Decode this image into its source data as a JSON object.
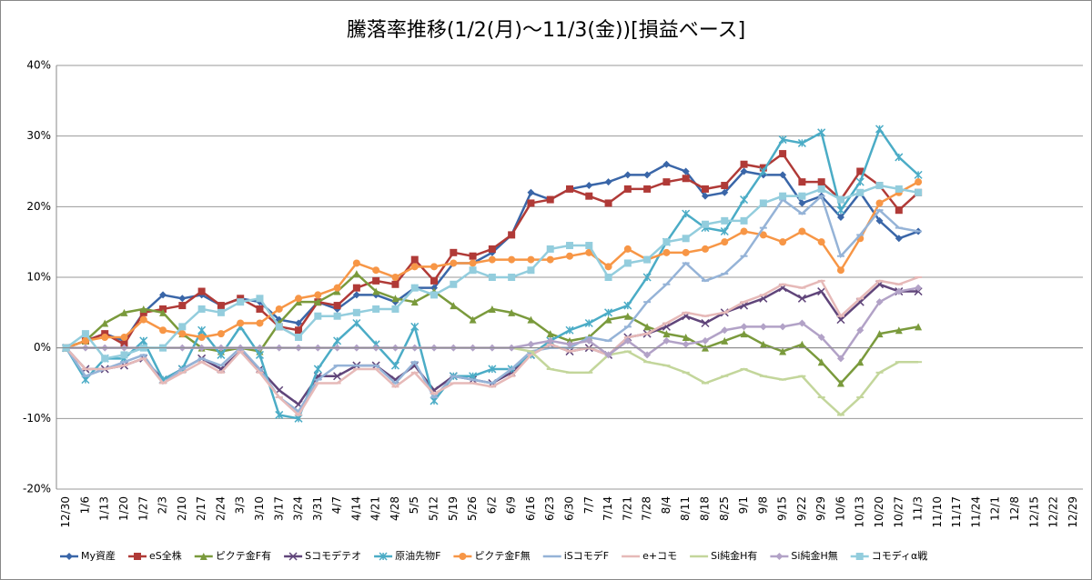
{
  "chart_data": {
    "type": "line",
    "title": "騰落率推移(1/2(月)～11/3(金))[損益ベース]",
    "categories": [
      "12/30",
      "1/6",
      "1/13",
      "1/20",
      "1/27",
      "2/3",
      "2/10",
      "2/17",
      "2/24",
      "3/3",
      "3/10",
      "3/17",
      "3/24",
      "3/31",
      "4/7",
      "4/14",
      "4/21",
      "4/28",
      "5/5",
      "5/12",
      "5/19",
      "5/26",
      "6/2",
      "6/9",
      "6/16",
      "6/23",
      "6/30",
      "7/7",
      "7/14",
      "7/21",
      "7/28",
      "8/4",
      "8/11",
      "8/18",
      "8/25",
      "9/1",
      "9/8",
      "9/15",
      "9/22",
      "9/29",
      "10/6",
      "10/13",
      "10/20",
      "10/27",
      "11/3",
      "11/10",
      "11/17",
      "11/24",
      "12/1",
      "12/8",
      "12/15",
      "12/22",
      "12/29"
    ],
    "ylim": [
      -20,
      40
    ],
    "yticks": [
      {
        "value": -20,
        "label": "-20%"
      },
      {
        "value": -10,
        "label": "-10%"
      },
      {
        "value": 0,
        "label": "0%"
      },
      {
        "value": 10,
        "label": "10%"
      },
      {
        "value": 20,
        "label": "20%"
      },
      {
        "value": 30,
        "label": "30%"
      },
      {
        "value": 40,
        "label": "40%"
      }
    ],
    "grid": true,
    "legend": "bottom",
    "series": [
      {
        "name": "My資産",
        "color": "#3a66a8",
        "marker": "diamond",
        "values": [
          0,
          1,
          2,
          1,
          5,
          7.5,
          7,
          7.5,
          6,
          7,
          6.5,
          4,
          3.5,
          6.5,
          5.5,
          7.5,
          7.5,
          6.5,
          8.5,
          8.5,
          12,
          12,
          13.5,
          16,
          22,
          21,
          22.5,
          23,
          23.5,
          24.5,
          24.5,
          26,
          25,
          21.5,
          22,
          25,
          24.5,
          24.5,
          20.5,
          21.5,
          18.5,
          22,
          18,
          15.5,
          16.5,
          null,
          null,
          null,
          null,
          null,
          null,
          null,
          null
        ]
      },
      {
        "name": "eS全株",
        "color": "#b03a37",
        "marker": "square",
        "values": [
          0,
          1,
          2,
          0.5,
          5,
          5.5,
          6,
          8,
          6,
          7,
          5.5,
          3,
          2.5,
          6.5,
          6,
          8.5,
          9.5,
          9,
          12.5,
          9.5,
          13.5,
          13,
          14,
          16,
          20.5,
          21,
          22.5,
          21.5,
          20.5,
          22.5,
          22.5,
          23.5,
          24,
          22.5,
          23,
          26,
          25.5,
          27.5,
          23.5,
          23.5,
          21,
          25,
          23,
          19.5,
          22,
          null,
          null,
          null,
          null,
          null,
          null,
          null,
          null
        ]
      },
      {
        "name": "ピクテ金F有",
        "color": "#7a9a3c",
        "marker": "triangle",
        "values": [
          0,
          1,
          3.5,
          5,
          5.5,
          5,
          2,
          0,
          -0.5,
          0,
          -0.5,
          3.5,
          6.5,
          6.5,
          8,
          10.5,
          8,
          7,
          6.5,
          8,
          6,
          4,
          5.5,
          5,
          4,
          2,
          1,
          1.5,
          4,
          4.5,
          3,
          2,
          1.5,
          0,
          1,
          2,
          0.5,
          -0.5,
          0.5,
          -2,
          -5,
          -2,
          2,
          2.5,
          3,
          null,
          null,
          null,
          null,
          null,
          null,
          null,
          null
        ]
      },
      {
        "name": "Sコモデテオ",
        "color": "#60457a",
        "marker": "x",
        "values": [
          0,
          -3,
          -3,
          -2.5,
          -1.5,
          -4.5,
          -3,
          -1.5,
          -3,
          -0.5,
          -3,
          -6,
          -8,
          -4,
          -4,
          -2.5,
          -2.5,
          -4.5,
          -2.5,
          -6,
          -4,
          -4.5,
          -5,
          -3.5,
          -1,
          0.5,
          -0.5,
          0,
          -1,
          1.5,
          2,
          3,
          4.5,
          3.5,
          5,
          6,
          7,
          8.5,
          7,
          8,
          4,
          6.5,
          9,
          8,
          8,
          null,
          null,
          null,
          null,
          null,
          null,
          null,
          null
        ]
      },
      {
        "name": "原油先物F",
        "color": "#4bacc6",
        "marker": "star",
        "values": [
          0,
          -4.5,
          -1.5,
          -1.5,
          1,
          -4.5,
          -3,
          2.5,
          -1,
          3,
          -1,
          -9.5,
          -10,
          -3,
          1,
          3.5,
          0.5,
          -2.5,
          3,
          -7.5,
          -4,
          -4,
          -3,
          -3,
          -1,
          1,
          2.5,
          3.5,
          5,
          6,
          10,
          15,
          19,
          17,
          16.5,
          21,
          25,
          29.5,
          29,
          30.5,
          19.5,
          23.5,
          31,
          27,
          24.5,
          null,
          null,
          null,
          null,
          null,
          null,
          null,
          null
        ]
      },
      {
        "name": "ピクテ金F無",
        "color": "#f79646",
        "marker": "circle",
        "values": [
          0,
          1,
          1.5,
          1.5,
          4,
          2.5,
          2,
          1.5,
          2,
          3.5,
          3.5,
          5.5,
          7,
          7.5,
          8.5,
          12,
          11,
          10,
          11.5,
          11.5,
          12,
          12,
          12.5,
          12.5,
          12.5,
          12.5,
          13,
          13.5,
          11.5,
          14,
          12.5,
          13.5,
          13.5,
          14,
          15,
          16.5,
          16,
          15,
          16.5,
          15,
          11,
          15.5,
          20.5,
          22,
          23.5,
          null,
          null,
          null,
          null,
          null,
          null,
          null,
          null
        ]
      },
      {
        "name": "iSコモデF",
        "color": "#95b3d7",
        "marker": "dash",
        "values": [
          0,
          -4,
          -3,
          -2,
          -1,
          -5,
          -3,
          -1.5,
          -2.5,
          0,
          -3,
          -7,
          -9,
          -4.5,
          -2.5,
          -2.5,
          -2.5,
          -5,
          -2,
          -7,
          -4,
          -4.5,
          -5,
          -3,
          -0.5,
          0,
          0,
          1.5,
          1,
          3,
          6.5,
          9,
          12,
          9.5,
          10.5,
          13,
          17,
          21,
          19,
          21.5,
          13,
          16,
          19.5,
          17,
          16.5,
          null,
          null,
          null,
          null,
          null,
          null,
          null,
          null
        ]
      },
      {
        "name": "e+コモ",
        "color": "#e6b9b8",
        "marker": "dash",
        "values": [
          0,
          -3,
          -3,
          -2.5,
          -1.5,
          -5,
          -3.5,
          -2,
          -3.5,
          -0.5,
          -3.5,
          -7,
          -9.5,
          -5,
          -5,
          -3,
          -3,
          -5.5,
          -3.5,
          -6.5,
          -5,
          -5,
          -5.5,
          -4,
          -1,
          0.5,
          -0.5,
          0,
          -1,
          1.5,
          2,
          3.5,
          5,
          4.5,
          5,
          6.5,
          7.5,
          9,
          8.5,
          9.5,
          4.5,
          7,
          9.5,
          9,
          10,
          null,
          null,
          null,
          null,
          null,
          null,
          null,
          null
        ]
      },
      {
        "name": "Si純金H有",
        "color": "#c3d69b",
        "marker": "dash",
        "values": [
          0,
          0,
          0,
          0,
          0,
          0,
          0,
          0,
          0,
          0,
          0,
          0,
          0,
          0,
          0,
          0,
          0,
          0,
          0,
          0,
          0,
          0,
          0,
          0,
          -0.5,
          -3,
          -3.5,
          -3.5,
          -1,
          -0.5,
          -2,
          -2.5,
          -3.5,
          -5,
          -4,
          -3,
          -4,
          -4.5,
          -4,
          -7,
          -9.5,
          -7,
          -3.5,
          -2,
          -2,
          null,
          null,
          null,
          null,
          null,
          null,
          null,
          null
        ]
      },
      {
        "name": "Si純金H無",
        "color": "#b2a2c7",
        "marker": "diamond",
        "values": [
          0,
          0,
          0,
          0,
          0,
          0,
          0,
          0,
          0,
          0,
          0,
          0,
          0,
          0,
          0,
          0,
          0,
          0,
          0,
          0,
          0,
          0,
          0,
          0,
          0.5,
          1,
          0.5,
          1,
          -1,
          1,
          -1,
          1,
          0.5,
          1,
          2.5,
          3,
          3,
          3,
          3.5,
          1.5,
          -1.5,
          2.5,
          6.5,
          8,
          8.5,
          null,
          null,
          null,
          null,
          null,
          null,
          null,
          null
        ]
      },
      {
        "name": "コモディα戦",
        "color": "#93cddd",
        "marker": "square",
        "values": [
          0,
          2,
          -1.5,
          -1,
          0,
          0,
          3,
          5.5,
          5,
          6.5,
          7,
          3,
          1.5,
          4.5,
          4.5,
          5,
          5.5,
          5.5,
          8.5,
          7.5,
          9,
          11,
          10,
          10,
          11,
          14,
          14.5,
          14.5,
          10,
          12,
          12.5,
          15,
          15.5,
          17.5,
          18,
          18,
          20.5,
          21.5,
          21.5,
          22.5,
          21,
          22,
          23,
          22.5,
          22,
          null,
          null,
          null,
          null,
          null,
          null,
          null,
          null
        ]
      }
    ]
  }
}
